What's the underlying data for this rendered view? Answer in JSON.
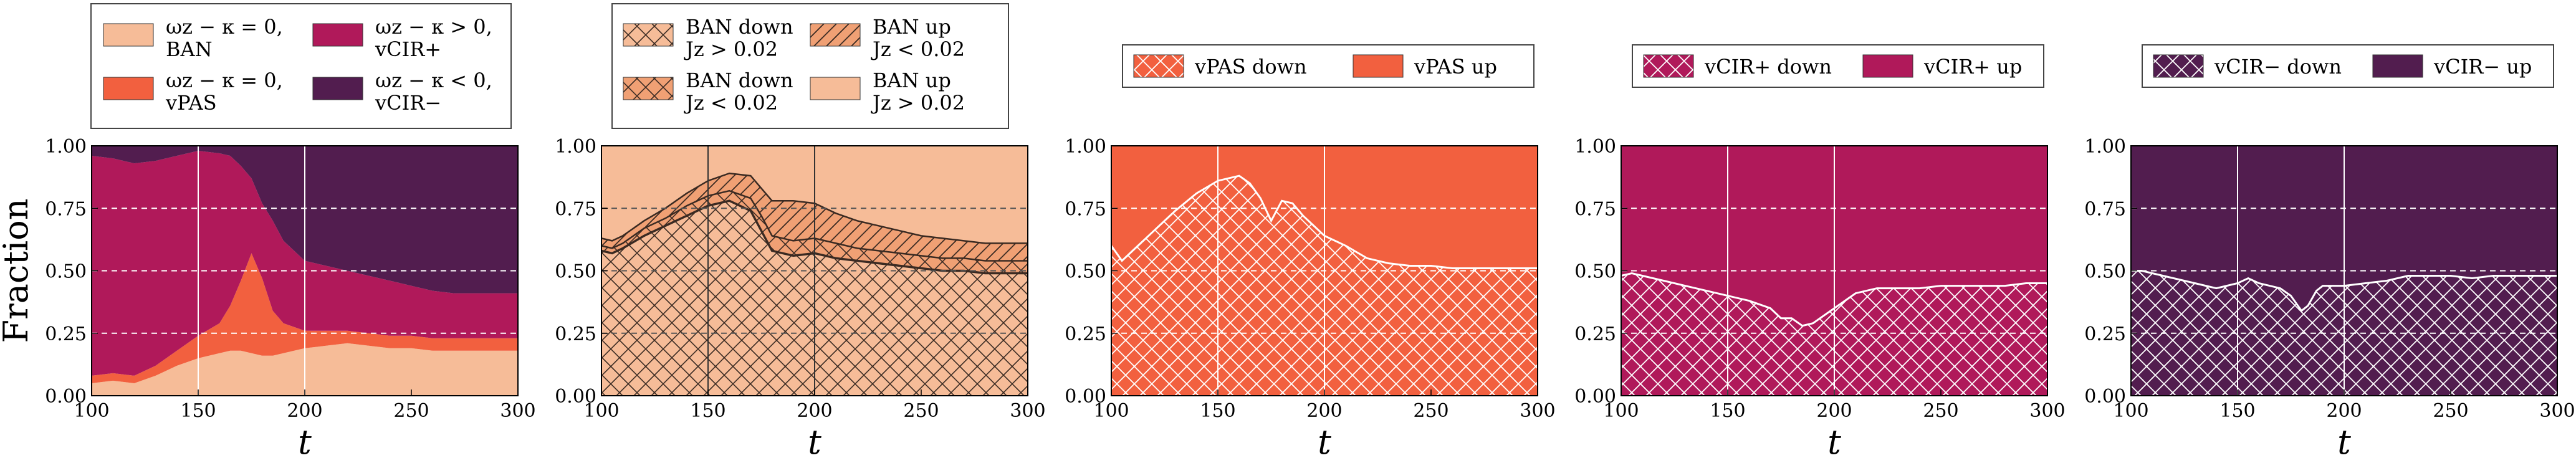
{
  "colors": {
    "ban": "#f6bc98",
    "vpas": "#f2603f",
    "vcir_plus": "#b0195a",
    "vcir_minus": "#521d4f",
    "ban_mid": "#f0a074"
  },
  "chart_data": [
    {
      "type": "area",
      "panel": "overall",
      "ylabel": "Fraction",
      "xlabel": "t",
      "xlim": [
        100,
        300
      ],
      "ylim": [
        0,
        1
      ],
      "xticks": [
        "100",
        "150",
        "200",
        "250",
        "300"
      ],
      "yticks": [
        "0.00",
        "0.25",
        "0.50",
        "0.75",
        "1.00"
      ],
      "vlines": [
        150,
        200
      ],
      "grid": "horizontal dashed",
      "legend_position": "above",
      "legend": [
        {
          "line1": "ωz − κ = 0,",
          "line2": "BAN",
          "color": "ban"
        },
        {
          "line1": "ωz − κ > 0,",
          "line2": "vCIR+",
          "color": "vcir_plus"
        },
        {
          "line1": "ωz − κ = 0,",
          "line2": "vPAS",
          "color": "vpas"
        },
        {
          "line1": "ωz − κ < 0,",
          "line2": "vCIR−",
          "color": "vcir_minus"
        }
      ],
      "x": [
        100,
        110,
        120,
        130,
        140,
        150,
        160,
        165,
        170,
        175,
        180,
        185,
        190,
        200,
        210,
        220,
        230,
        240,
        250,
        260,
        270,
        280,
        290,
        300
      ],
      "series": [
        {
          "name": "BAN",
          "color": "ban",
          "values": [
            0.05,
            0.06,
            0.05,
            0.08,
            0.12,
            0.15,
            0.17,
            0.18,
            0.18,
            0.17,
            0.16,
            0.16,
            0.17,
            0.19,
            0.2,
            0.21,
            0.2,
            0.19,
            0.19,
            0.18,
            0.18,
            0.18,
            0.18,
            0.18
          ]
        },
        {
          "name": "vPAS",
          "color": "vpas",
          "values": [
            0.03,
            0.03,
            0.03,
            0.04,
            0.06,
            0.09,
            0.12,
            0.18,
            0.28,
            0.4,
            0.31,
            0.18,
            0.12,
            0.07,
            0.06,
            0.05,
            0.05,
            0.05,
            0.05,
            0.05,
            0.05,
            0.05,
            0.05,
            0.05
          ]
        },
        {
          "name": "vCIR+",
          "color": "vcir_plus",
          "values": [
            0.88,
            0.86,
            0.85,
            0.82,
            0.78,
            0.74,
            0.68,
            0.6,
            0.46,
            0.3,
            0.3,
            0.36,
            0.33,
            0.28,
            0.26,
            0.24,
            0.23,
            0.22,
            0.2,
            0.19,
            0.18,
            0.18,
            0.18,
            0.18
          ]
        },
        {
          "name": "vCIR−",
          "color": "vcir_minus",
          "values": [
            0.04,
            0.05,
            0.07,
            0.06,
            0.04,
            0.02,
            0.03,
            0.04,
            0.08,
            0.13,
            0.23,
            0.3,
            0.38,
            0.46,
            0.48,
            0.5,
            0.52,
            0.54,
            0.56,
            0.58,
            0.59,
            0.59,
            0.59,
            0.59
          ]
        }
      ]
    },
    {
      "type": "area",
      "panel": "BAN split",
      "xlabel": "t",
      "xlim": [
        100,
        300
      ],
      "ylim": [
        0,
        1
      ],
      "xticks": [
        "100",
        "150",
        "200",
        "250",
        "300"
      ],
      "yticks": [
        "0.00",
        "0.25",
        "0.50",
        "0.75",
        "1.00"
      ],
      "vlines": [
        150,
        200
      ],
      "grid": "horizontal dashed",
      "legend_position": "above",
      "legend": [
        {
          "line1": "BAN down",
          "line2": "Jz > 0.02",
          "style": "light-cross"
        },
        {
          "line1": "BAN up",
          "line2": "Jz < 0.02",
          "style": "mid-diag"
        },
        {
          "line1": "BAN down",
          "line2": "Jz < 0.02",
          "style": "mid-cross"
        },
        {
          "line1": "BAN up",
          "line2": "Jz > 0.02",
          "style": "light"
        }
      ],
      "x": [
        100,
        105,
        110,
        120,
        130,
        140,
        150,
        160,
        170,
        175,
        180,
        190,
        200,
        210,
        220,
        230,
        240,
        250,
        260,
        270,
        280,
        290,
        300
      ],
      "series": [
        {
          "name": "BAN down Jz > 0.02",
          "values": [
            0.58,
            0.57,
            0.59,
            0.64,
            0.68,
            0.72,
            0.76,
            0.78,
            0.74,
            0.66,
            0.58,
            0.56,
            0.57,
            0.55,
            0.54,
            0.53,
            0.52,
            0.51,
            0.5,
            0.5,
            0.49,
            0.49,
            0.49
          ]
        },
        {
          "name": "BAN down Jz < 0.02",
          "values": [
            0.02,
            0.02,
            0.02,
            0.03,
            0.03,
            0.04,
            0.04,
            0.04,
            0.05,
            0.06,
            0.06,
            0.06,
            0.06,
            0.06,
            0.05,
            0.05,
            0.05,
            0.05,
            0.05,
            0.05,
            0.05,
            0.05,
            0.05
          ]
        },
        {
          "name": "BAN up Jz < 0.02",
          "values": [
            0.03,
            0.03,
            0.03,
            0.03,
            0.04,
            0.05,
            0.06,
            0.07,
            0.09,
            0.11,
            0.14,
            0.16,
            0.14,
            0.12,
            0.11,
            0.1,
            0.09,
            0.08,
            0.08,
            0.07,
            0.07,
            0.07,
            0.07
          ]
        },
        {
          "name": "BAN up Jz > 0.02",
          "values": [
            0.37,
            0.38,
            0.36,
            0.3,
            0.25,
            0.19,
            0.14,
            0.11,
            0.12,
            0.17,
            0.22,
            0.22,
            0.23,
            0.27,
            0.3,
            0.32,
            0.34,
            0.36,
            0.37,
            0.38,
            0.39,
            0.39,
            0.39
          ]
        }
      ]
    },
    {
      "type": "area",
      "panel": "vPAS split",
      "xlabel": "t",
      "xlim": [
        100,
        300
      ],
      "ylim": [
        0,
        1
      ],
      "xticks": [
        "100",
        "150",
        "200",
        "250",
        "300"
      ],
      "yticks": [
        "0.00",
        "0.25",
        "0.50",
        "0.75",
        "1.00"
      ],
      "vlines": [
        150,
        200
      ],
      "grid": "horizontal dashed",
      "legend": [
        {
          "label": "vPAS down",
          "style": "hatch",
          "color": "vpas"
        },
        {
          "label": "vPAS up",
          "style": "solid",
          "color": "vpas"
        }
      ],
      "x": [
        100,
        105,
        110,
        120,
        130,
        140,
        150,
        160,
        165,
        170,
        175,
        180,
        185,
        190,
        200,
        210,
        220,
        230,
        240,
        250,
        260,
        270,
        280,
        290,
        300
      ],
      "series": [
        {
          "name": "vPAS down",
          "values": [
            0.6,
            0.54,
            0.58,
            0.66,
            0.74,
            0.81,
            0.86,
            0.88,
            0.85,
            0.79,
            0.7,
            0.78,
            0.77,
            0.72,
            0.64,
            0.6,
            0.55,
            0.53,
            0.52,
            0.52,
            0.51,
            0.51,
            0.51,
            0.51,
            0.51
          ]
        },
        {
          "name": "vPAS up",
          "values": [
            0.4,
            0.46,
            0.42,
            0.34,
            0.26,
            0.19,
            0.14,
            0.12,
            0.15,
            0.21,
            0.3,
            0.22,
            0.23,
            0.28,
            0.36,
            0.4,
            0.45,
            0.47,
            0.48,
            0.48,
            0.49,
            0.49,
            0.49,
            0.49,
            0.49
          ]
        }
      ]
    },
    {
      "type": "area",
      "panel": "vCIR+ split",
      "xlabel": "t",
      "xlim": [
        100,
        300
      ],
      "ylim": [
        0,
        1
      ],
      "xticks": [
        "100",
        "150",
        "200",
        "250",
        "300"
      ],
      "yticks": [
        "0.00",
        "0.25",
        "0.50",
        "0.75",
        "1.00"
      ],
      "vlines": [
        150,
        200
      ],
      "grid": "horizontal dashed",
      "legend": [
        {
          "label": "vCIR+ down",
          "style": "hatch",
          "color": "vcir_plus"
        },
        {
          "label": "vCIR+ up",
          "style": "solid",
          "color": "vcir_plus"
        }
      ],
      "x": [
        100,
        105,
        110,
        120,
        130,
        140,
        150,
        160,
        170,
        175,
        180,
        185,
        190,
        200,
        210,
        220,
        230,
        240,
        250,
        260,
        270,
        280,
        290,
        300
      ],
      "series": [
        {
          "name": "vCIR+ down",
          "values": [
            0.48,
            0.49,
            0.48,
            0.46,
            0.44,
            0.42,
            0.4,
            0.38,
            0.35,
            0.31,
            0.31,
            0.28,
            0.29,
            0.35,
            0.41,
            0.43,
            0.43,
            0.43,
            0.44,
            0.44,
            0.44,
            0.44,
            0.45,
            0.45
          ]
        },
        {
          "name": "vCIR+ up",
          "values": [
            0.52,
            0.51,
            0.52,
            0.54,
            0.56,
            0.58,
            0.6,
            0.62,
            0.65,
            0.69,
            0.69,
            0.72,
            0.71,
            0.65,
            0.59,
            0.57,
            0.57,
            0.57,
            0.56,
            0.56,
            0.56,
            0.56,
            0.55,
            0.55
          ]
        }
      ]
    },
    {
      "type": "area",
      "panel": "vCIR− split",
      "xlabel": "t",
      "xlim": [
        100,
        300
      ],
      "ylim": [
        0,
        1
      ],
      "xticks": [
        "100",
        "150",
        "200",
        "250",
        "300"
      ],
      "yticks": [
        "0.00",
        "0.25",
        "0.50",
        "0.75",
        "1.00"
      ],
      "vlines": [
        150,
        200
      ],
      "grid": "horizontal dashed",
      "legend": [
        {
          "label": "vCIR− down",
          "style": "hatch",
          "color": "vcir_minus"
        },
        {
          "label": "vCIR− up",
          "style": "solid",
          "color": "vcir_minus"
        }
      ],
      "x": [
        100,
        105,
        110,
        120,
        130,
        140,
        150,
        155,
        160,
        170,
        175,
        180,
        183,
        187,
        190,
        200,
        210,
        220,
        230,
        240,
        250,
        260,
        270,
        280,
        290,
        300
      ],
      "series": [
        {
          "name": "vCIR− down",
          "values": [
            0.5,
            0.5,
            0.49,
            0.47,
            0.45,
            0.43,
            0.45,
            0.47,
            0.45,
            0.43,
            0.4,
            0.34,
            0.36,
            0.42,
            0.44,
            0.44,
            0.45,
            0.46,
            0.48,
            0.48,
            0.48,
            0.47,
            0.48,
            0.48,
            0.48,
            0.48
          ]
        },
        {
          "name": "vCIR− up",
          "values": [
            0.5,
            0.5,
            0.51,
            0.53,
            0.55,
            0.57,
            0.55,
            0.53,
            0.55,
            0.57,
            0.6,
            0.66,
            0.64,
            0.58,
            0.56,
            0.56,
            0.55,
            0.54,
            0.52,
            0.52,
            0.52,
            0.53,
            0.52,
            0.52,
            0.52,
            0.52
          ]
        }
      ]
    }
  ]
}
